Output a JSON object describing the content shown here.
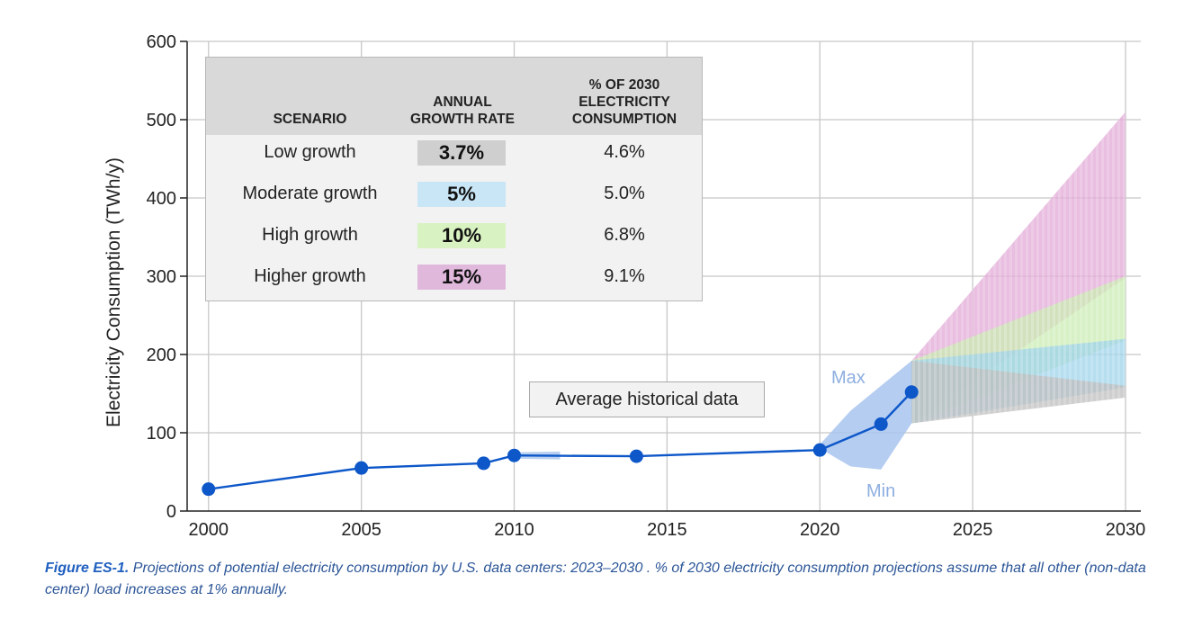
{
  "chart_data": {
    "type": "line",
    "ylabel": "Electricity Consumption (TWh/y)",
    "xlabel": "",
    "xlim": [
      1999.3,
      2030.5
    ],
    "ylim": [
      0,
      600
    ],
    "x_ticks": [
      2000,
      2005,
      2010,
      2015,
      2020,
      2025,
      2030
    ],
    "y_ticks": [
      0,
      100,
      200,
      300,
      400,
      500,
      600
    ],
    "grid": true,
    "series": [
      {
        "name": "Average historical data",
        "color": "#0d57c9",
        "x": [
          2000,
          2005,
          2009,
          2010,
          2014,
          2020,
          2022,
          2023
        ],
        "y": [
          28,
          55,
          61,
          71,
          70,
          78,
          111,
          152
        ]
      }
    ],
    "historical_range": {
      "upper": [
        [
          2020,
          85
        ],
        [
          2021,
          128
        ],
        [
          2022,
          160
        ],
        [
          2023,
          192
        ]
      ],
      "lower": [
        [
          2020,
          80
        ],
        [
          2021,
          57
        ],
        [
          2022,
          53
        ],
        [
          2023,
          112
        ]
      ],
      "color": "#a8c4ee"
    },
    "projection_bands": [
      {
        "scenario": "Low growth",
        "color": "#bdbdbd",
        "low": [
          [
            2023,
            112
          ],
          [
            2030,
            145
          ]
        ],
        "high": [
          [
            2023,
            192
          ],
          [
            2030,
            160
          ]
        ]
      },
      {
        "scenario": "Moderate growth",
        "color": "#9dd3ea",
        "low": [
          [
            2023,
            112
          ],
          [
            2030,
            158
          ]
        ],
        "high": [
          [
            2023,
            192
          ],
          [
            2030,
            220
          ]
        ]
      },
      {
        "scenario": "High growth",
        "color": "#c9ebb1",
        "low": [
          [
            2023,
            112
          ],
          [
            2030,
            218
          ]
        ],
        "high": [
          [
            2023,
            192
          ],
          [
            2030,
            300
          ]
        ]
      },
      {
        "scenario": "Higher growth",
        "color": "#e2a8d6",
        "low": [
          [
            2023,
            112
          ],
          [
            2030,
            298
          ]
        ],
        "high": [
          [
            2023,
            192
          ],
          [
            2030,
            510
          ]
        ]
      }
    ],
    "annotations": {
      "max": "Max",
      "min": "Min",
      "historical": "Average historical data"
    },
    "table": {
      "headers": [
        "SCENARIO",
        "ANNUAL GROWTH RATE",
        "% OF 2030 ELECTRICITY CONSUMPTION"
      ],
      "header_lines": {
        "scenario": [
          "SCENARIO"
        ],
        "rate": [
          "ANNUAL",
          "GROWTH RATE"
        ],
        "pct": [
          "% OF 2030",
          "ELECTRICITY",
          "CONSUMPTION"
        ]
      },
      "rows": [
        {
          "scenario": "Low growth",
          "rate": "3.7%",
          "pct": "4.6%",
          "swatch": "#cfcfcf"
        },
        {
          "scenario": "Moderate growth",
          "rate": "5%",
          "pct": "5.0%",
          "swatch": "#c9e6f6"
        },
        {
          "scenario": "High growth",
          "rate": "10%",
          "pct": "6.8%",
          "swatch": "#d9f2c2"
        },
        {
          "scenario": "Higher growth",
          "rate": "15%",
          "pct": "9.1%",
          "swatch": "#e0b8dc"
        }
      ]
    }
  },
  "caption": {
    "label": "Figure ES-1.",
    "text": " Projections of potential electricity consumption by U.S. data centers: 2023–2030 . % of 2030 electricity consumption projections assume that all other (non-data center) load increases at 1% annually."
  }
}
